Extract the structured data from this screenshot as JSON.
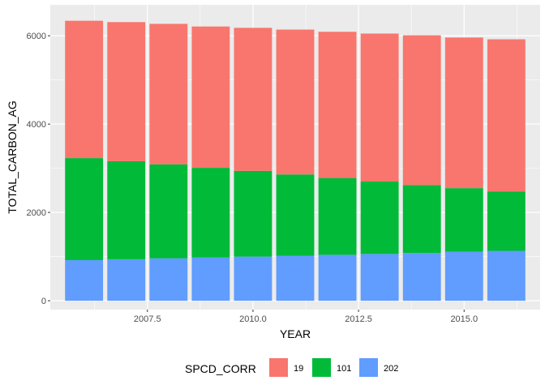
{
  "chart_data": {
    "type": "bar",
    "stacked": true,
    "title": "",
    "xlabel": "YEAR",
    "ylabel": "TOTAL_CARBON_AG",
    "x": [
      2006,
      2007,
      2008,
      2009,
      2010,
      2011,
      2012,
      2013,
      2014,
      2015,
      2016
    ],
    "xlim": [
      2005.2,
      2016.8
    ],
    "ylim": [
      -200,
      6700
    ],
    "x_ticks": [
      2007.5,
      2010.0,
      2012.5,
      2015.0
    ],
    "x_tick_labels": [
      "2007.5",
      "2010.0",
      "2012.5",
      "2015.0"
    ],
    "y_ticks": [
      0,
      2000,
      4000,
      6000
    ],
    "y_tick_labels": [
      "0",
      "2000",
      "4000",
      "6000"
    ],
    "grid": true,
    "legend": {
      "title": "SPCD_CORR",
      "position": "bottom"
    },
    "series": [
      {
        "name": "202",
        "color": "#619cff",
        "values": [
          920,
          940,
          960,
          980,
          1000,
          1020,
          1040,
          1060,
          1080,
          1110,
          1130
        ]
      },
      {
        "name": "101",
        "color": "#00ba38",
        "values": [
          2310,
          2220,
          2130,
          2030,
          1940,
          1840,
          1740,
          1640,
          1540,
          1440,
          1340
        ]
      },
      {
        "name": "19",
        "color": "#f8766d",
        "values": [
          3110,
          3150,
          3180,
          3200,
          3240,
          3280,
          3310,
          3350,
          3390,
          3410,
          3450
        ]
      }
    ]
  }
}
